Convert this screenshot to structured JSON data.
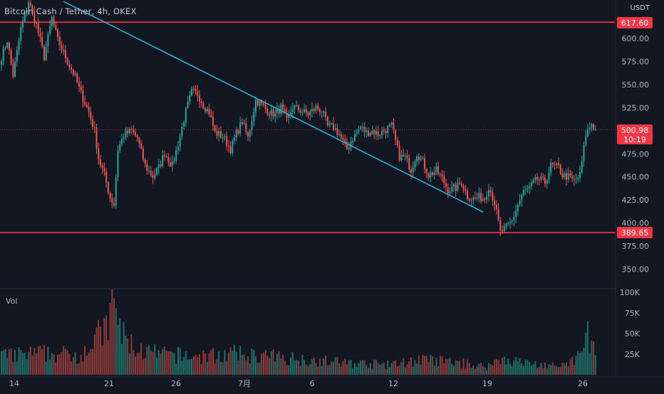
{
  "header": {
    "symbol": "Bitcoin Cash / Tether",
    "interval": "4h",
    "exchange": "OKEX",
    "separator": "/"
  },
  "volume_panel": {
    "label": "Vol",
    "axis_ticks": [
      "100K",
      "75K",
      "50K",
      "25K"
    ]
  },
  "price_axis": {
    "currency": "USDT",
    "ticks": [
      "600.00",
      "575.00",
      "550.00",
      "525.00",
      "500.00",
      "475.00",
      "450.00",
      "425.00",
      "400.00",
      "375.00",
      "350.00"
    ]
  },
  "price_labels": {
    "resistance": "617.60",
    "support": "389.65",
    "last_price": "500.98",
    "countdown": "10:19"
  },
  "time_axis": {
    "ticks": [
      "14",
      "21",
      "26",
      "7月",
      "6",
      "12",
      "19",
      "26"
    ]
  },
  "colors": {
    "background": "#131722",
    "up": "#26a69a",
    "down": "#ef5350",
    "horizontal_lines": "#f23645",
    "trendline": "#2bb0d6",
    "volume_up": "#1f6f68",
    "volume_down": "#8c3a3a"
  },
  "chart_data": {
    "type": "candlestick",
    "title": "Bitcoin Cash / Tether, 4h, OKEX",
    "y_unit": "USDT",
    "ylim": [
      340,
      625
    ],
    "volume_ylim": [
      0,
      100000
    ],
    "grid": false,
    "x_tick_labels": [
      "14",
      "21",
      "26",
      "7月",
      "6",
      "12",
      "19",
      "26"
    ],
    "horizontal_lines": [
      617.6,
      389.65
    ],
    "last_price": 500.98,
    "trendline": {
      "from": {
        "bar": 32,
        "price": 640
      },
      "to": {
        "bar": 248,
        "price": 412
      }
    },
    "anchors": [
      [
        0,
        580
      ],
      [
        3,
        598
      ],
      [
        6,
        560
      ],
      [
        10,
        610
      ],
      [
        14,
        640
      ],
      [
        18,
        615
      ],
      [
        22,
        580
      ],
      [
        26,
        622
      ],
      [
        29,
        598
      ],
      [
        34,
        575
      ],
      [
        38,
        558
      ],
      [
        41,
        540
      ],
      [
        45,
        520
      ],
      [
        48,
        500
      ],
      [
        50,
        470
      ],
      [
        53,
        452
      ],
      [
        56,
        428
      ],
      [
        58,
        420
      ],
      [
        60,
        480
      ],
      [
        63,
        495
      ],
      [
        67,
        500
      ],
      [
        70,
        492
      ],
      [
        74,
        462
      ],
      [
        78,
        450
      ],
      [
        81,
        460
      ],
      [
        84,
        476
      ],
      [
        88,
        462
      ],
      [
        91,
        486
      ],
      [
        95,
        521
      ],
      [
        98,
        542
      ],
      [
        101,
        540
      ],
      [
        104,
        528
      ],
      [
        107,
        520
      ],
      [
        110,
        498
      ],
      [
        114,
        494
      ],
      [
        118,
        480
      ],
      [
        121,
        497
      ],
      [
        124,
        510
      ],
      [
        127,
        492
      ],
      [
        131,
        533
      ],
      [
        135,
        526
      ],
      [
        138,
        520
      ],
      [
        141,
        518
      ],
      [
        144,
        525
      ],
      [
        147,
        510
      ],
      [
        150,
        526
      ],
      [
        154,
        522
      ],
      [
        158,
        518
      ],
      [
        162,
        525
      ],
      [
        165,
        522
      ],
      [
        168,
        505
      ],
      [
        171,
        504
      ],
      [
        174,
        496
      ],
      [
        178,
        480
      ],
      [
        181,
        492
      ],
      [
        185,
        504
      ],
      [
        188,
        498
      ],
      [
        191,
        500
      ],
      [
        194,
        496
      ],
      [
        197,
        500
      ],
      [
        201,
        505
      ],
      [
        205,
        472
      ],
      [
        208,
        471
      ],
      [
        211,
        458
      ],
      [
        214,
        476
      ],
      [
        217,
        466
      ],
      [
        220,
        452
      ],
      [
        224,
        457
      ],
      [
        227,
        448
      ],
      [
        230,
        436
      ],
      [
        234,
        438
      ],
      [
        237,
        444
      ],
      [
        240,
        429
      ],
      [
        243,
        426
      ],
      [
        246,
        428
      ],
      [
        249,
        427
      ],
      [
        251,
        440
      ],
      [
        254,
        422
      ],
      [
        257,
        390
      ],
      [
        260,
        395
      ],
      [
        263,
        402
      ],
      [
        266,
        420
      ],
      [
        269,
        434
      ],
      [
        272,
        438
      ],
      [
        276,
        448
      ],
      [
        280,
        444
      ],
      [
        283,
        462
      ],
      [
        287,
        460
      ],
      [
        289,
        452
      ],
      [
        292,
        450
      ],
      [
        295,
        445
      ],
      [
        298,
        452
      ],
      [
        301,
        496
      ],
      [
        304,
        508
      ],
      [
        306,
        501
      ]
    ],
    "volume_anchors": [
      [
        0,
        22000
      ],
      [
        20,
        26000
      ],
      [
        40,
        24000
      ],
      [
        55,
        58000
      ],
      [
        58,
        88000
      ],
      [
        62,
        48000
      ],
      [
        70,
        30000
      ],
      [
        80,
        25000
      ],
      [
        100,
        22000
      ],
      [
        120,
        25000
      ],
      [
        150,
        20000
      ],
      [
        175,
        15000
      ],
      [
        200,
        12000
      ],
      [
        215,
        18000
      ],
      [
        230,
        16000
      ],
      [
        250,
        10000
      ],
      [
        258,
        20000
      ],
      [
        270,
        14000
      ],
      [
        290,
        10000
      ],
      [
        300,
        28000
      ],
      [
        302,
        55000
      ],
      [
        306,
        22000
      ]
    ]
  }
}
